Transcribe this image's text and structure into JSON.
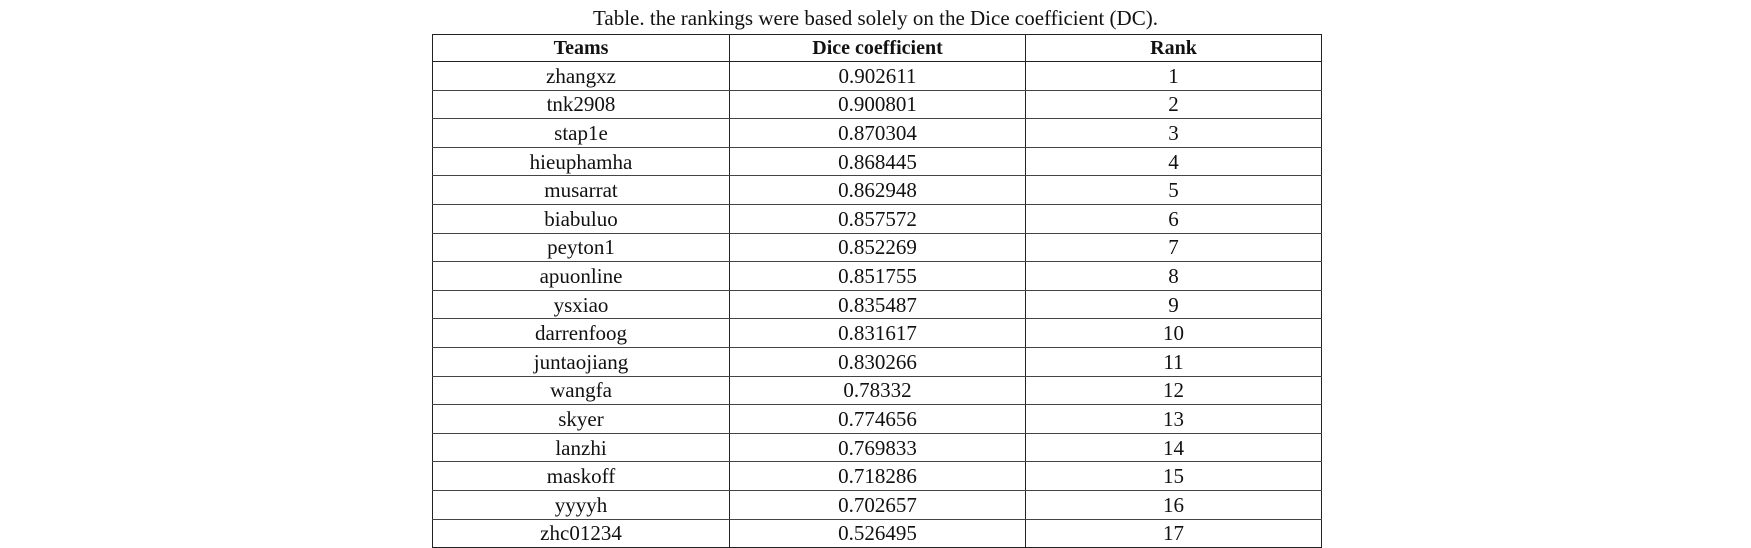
{
  "caption": "Table. the rankings were based solely on the Dice coefficient (DC).",
  "table": {
    "headers": [
      "Teams",
      "Dice coefficient",
      "Rank"
    ],
    "rows": [
      [
        "zhangxz",
        "0.902611",
        "1"
      ],
      [
        "tnk2908",
        "0.900801",
        "2"
      ],
      [
        "stap1e",
        "0.870304",
        "3"
      ],
      [
        "hieuphamha",
        "0.868445",
        "4"
      ],
      [
        "musarrat",
        "0.862948",
        "5"
      ],
      [
        "biabuluo",
        "0.857572",
        "6"
      ],
      [
        "peyton1",
        "0.852269",
        "7"
      ],
      [
        "apuonline",
        "0.851755",
        "8"
      ],
      [
        "ysxiao",
        "0.835487",
        "9"
      ],
      [
        "darrenfoog",
        "0.831617",
        "10"
      ],
      [
        "juntaojiang",
        "0.830266",
        "11"
      ],
      [
        "wangfa",
        "0.78332",
        "12"
      ],
      [
        "skyer",
        "0.774656",
        "13"
      ],
      [
        "lanzhi",
        "0.769833",
        "14"
      ],
      [
        "maskoff",
        "0.718286",
        "15"
      ],
      [
        "yyyyh",
        "0.702657",
        "16"
      ],
      [
        "zhc01234",
        "0.526495",
        "17"
      ]
    ]
  }
}
